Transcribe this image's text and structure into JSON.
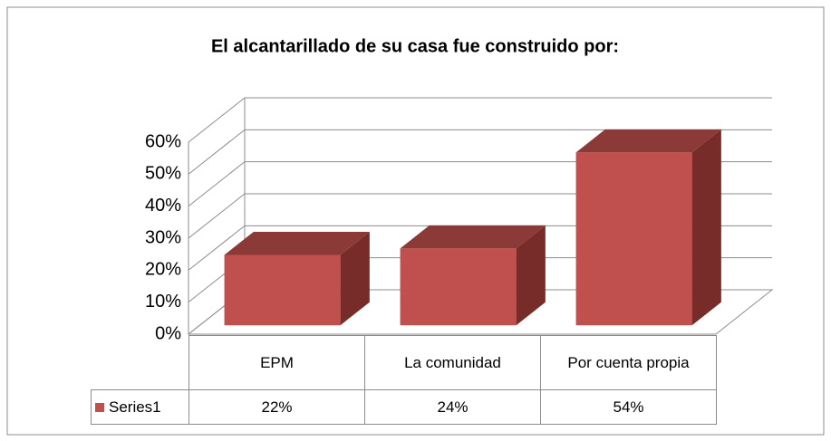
{
  "chart_data": {
    "type": "bar3d",
    "title": "El alcantarillado de su casa fue construido  por:",
    "categories": [
      "EPM",
      "La comunidad",
      "Por cuenta propia"
    ],
    "series": [
      {
        "name": "Series1",
        "color": "#c0504d",
        "values": [
          22,
          24,
          54
        ],
        "value_labels": [
          "22%",
          "24%",
          "54%"
        ]
      }
    ],
    "ylim": [
      0,
      60
    ],
    "yticks": [
      {
        "value": 0,
        "label": "0%"
      },
      {
        "value": 10,
        "label": "10%"
      },
      {
        "value": 20,
        "label": "20%"
      },
      {
        "value": 30,
        "label": "30%"
      },
      {
        "value": 40,
        "label": "40%"
      },
      {
        "value": 50,
        "label": "50%"
      },
      {
        "value": 60,
        "label": "60%"
      }
    ],
    "grid": true,
    "legend": "data-table"
  }
}
